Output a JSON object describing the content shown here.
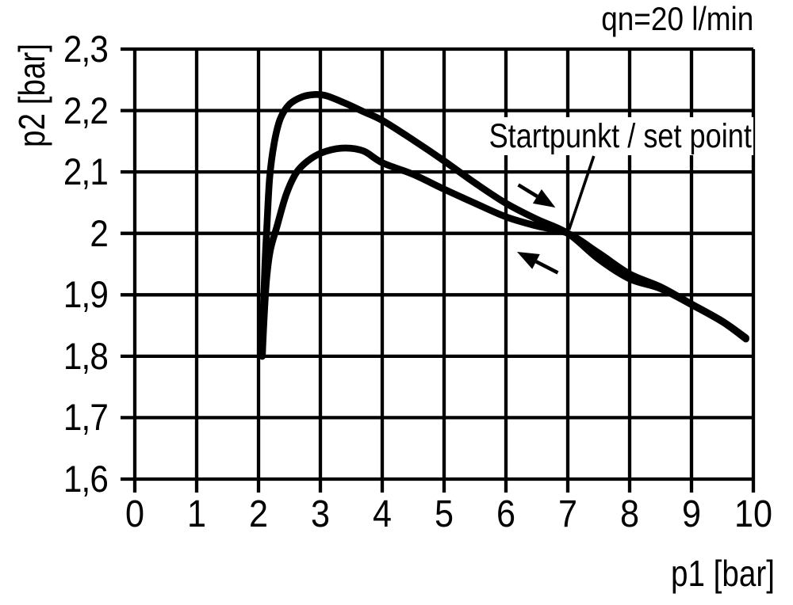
{
  "chart_data": {
    "type": "line",
    "title": "qn=20 l/min",
    "xlabel": "p1 [bar]",
    "ylabel": "p2 [bar]",
    "xlim": [
      0,
      10
    ],
    "ylim": [
      1.6,
      2.3
    ],
    "grid": true,
    "line_color": "#000000",
    "x_ticks": {
      "values": [
        0,
        1,
        2,
        3,
        4,
        5,
        6,
        7,
        8,
        9,
        10
      ],
      "labels": [
        "0",
        "1",
        "2",
        "3",
        "4",
        "5",
        "6",
        "7",
        "8",
        "9",
        "10"
      ]
    },
    "y_ticks": {
      "values": [
        2.3,
        2.2,
        2.1,
        2.0,
        1.9,
        1.8,
        1.7,
        1.6
      ],
      "labels": [
        "2,3",
        "2,2",
        "2,1",
        "2",
        "1,9",
        "1,8",
        "1,7",
        "1,6"
      ]
    },
    "series": [
      {
        "id": "upper-curve",
        "note": "direction of increasing p1 (right arrow)",
        "points": [
          [
            2.06,
            1.8
          ],
          [
            2.08,
            1.88
          ],
          [
            2.105,
            1.95
          ],
          [
            2.135,
            2.01
          ],
          [
            2.18,
            2.09
          ],
          [
            2.25,
            2.145
          ],
          [
            2.35,
            2.186
          ],
          [
            2.5,
            2.21
          ],
          [
            2.7,
            2.222
          ],
          [
            2.9,
            2.226
          ],
          [
            3.1,
            2.224
          ],
          [
            3.4,
            2.212
          ],
          [
            3.7,
            2.198
          ],
          [
            4.0,
            2.184
          ],
          [
            4.5,
            2.152
          ],
          [
            5.0,
            2.118
          ],
          [
            5.5,
            2.082
          ],
          [
            6.0,
            2.049
          ],
          [
            6.5,
            2.023
          ],
          [
            7.0,
            2.0
          ],
          [
            7.5,
            1.958
          ],
          [
            8.0,
            1.926
          ],
          [
            8.5,
            1.91
          ],
          [
            9.0,
            1.884
          ],
          [
            9.5,
            1.856
          ],
          [
            9.88,
            1.828
          ]
        ]
      },
      {
        "id": "lower-curve",
        "note": "direction of decreasing p1 (left arrow)",
        "points": [
          [
            2.06,
            1.8
          ],
          [
            2.09,
            1.862
          ],
          [
            2.13,
            1.925
          ],
          [
            2.19,
            1.972
          ],
          [
            2.3,
            2.012
          ],
          [
            2.45,
            2.064
          ],
          [
            2.62,
            2.1
          ],
          [
            2.85,
            2.122
          ],
          [
            3.1,
            2.134
          ],
          [
            3.4,
            2.139
          ],
          [
            3.7,
            2.134
          ],
          [
            4.0,
            2.115
          ],
          [
            4.5,
            2.096
          ],
          [
            5.0,
            2.072
          ],
          [
            5.5,
            2.049
          ],
          [
            6.0,
            2.027
          ],
          [
            6.5,
            2.012
          ],
          [
            7.0,
            2.0
          ],
          [
            7.5,
            1.968
          ],
          [
            8.0,
            1.934
          ],
          [
            8.5,
            1.913
          ],
          [
            9.0,
            1.885
          ],
          [
            9.5,
            1.857
          ],
          [
            9.88,
            1.83
          ]
        ]
      }
    ],
    "annotations": {
      "set_point_label": {
        "text": "Startpunkt / set point",
        "points_to": [
          7.02,
          2.006
        ]
      },
      "pointer_line": {
        "from": [
          7.42,
          2.126
        ],
        "to": [
          7.02,
          2.006
        ]
      },
      "direction_arrows": [
        {
          "id": "arrow-increasing-p1",
          "from": [
            6.2,
            2.079
          ],
          "to": [
            6.8,
            2.042
          ]
        },
        {
          "id": "arrow-decreasing-p1",
          "from": [
            6.84,
            1.936
          ],
          "to": [
            6.18,
            1.97
          ]
        }
      ]
    }
  }
}
